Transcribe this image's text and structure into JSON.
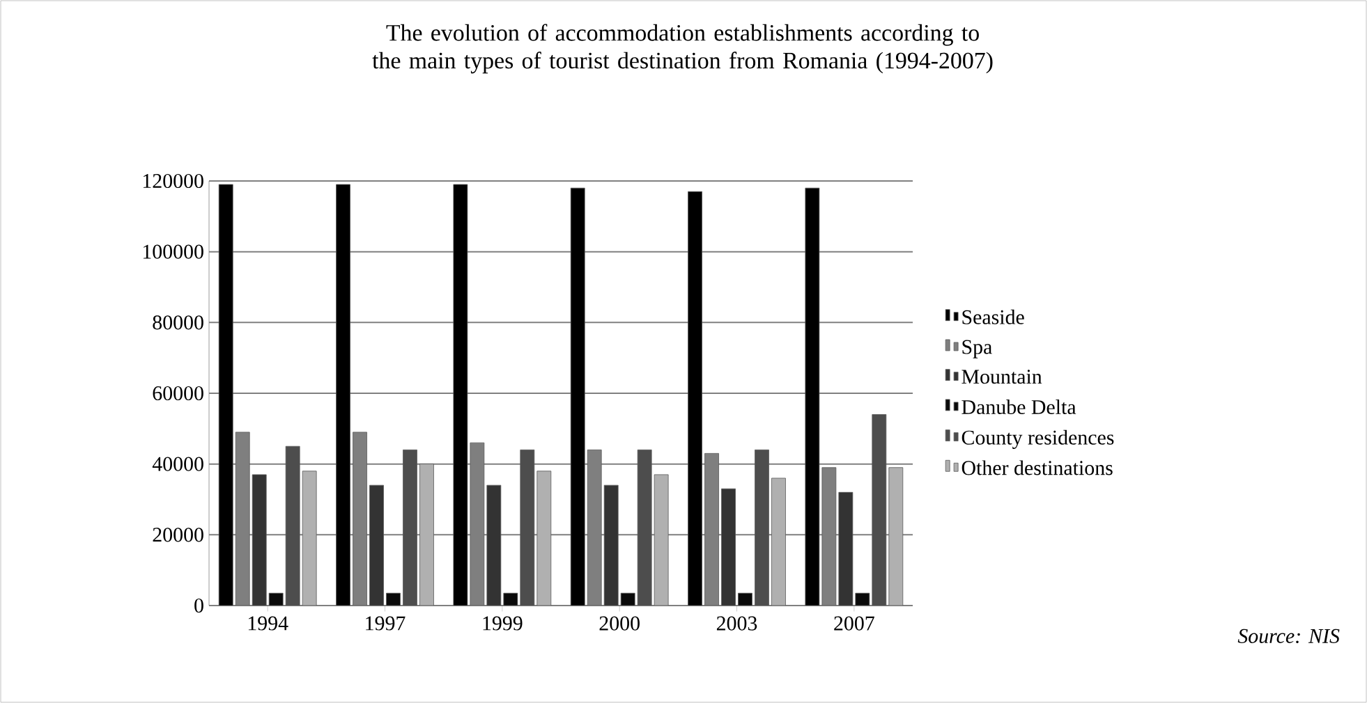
{
  "chart_data": {
    "type": "bar",
    "title": "The evolution of accommodation establishments according to the main types of tourist destination from Romania (1994-2007)",
    "categories": [
      "1994",
      "1997",
      "1999",
      "2000",
      "2003",
      "2007"
    ],
    "series": [
      {
        "name": "Seaside",
        "color": "#000000",
        "values": [
          119000,
          119000,
          119000,
          118000,
          117000,
          118000
        ]
      },
      {
        "name": "Spa",
        "color": "#7f7f7f",
        "values": [
          49000,
          49000,
          46000,
          44000,
          43000,
          39000
        ]
      },
      {
        "name": "Mountain",
        "color": "#333333",
        "values": [
          37000,
          34000,
          34000,
          34000,
          33000,
          32000
        ]
      },
      {
        "name": "Danube Delta",
        "color": "#0a0a0a",
        "values": [
          3500,
          3500,
          3500,
          3500,
          3500,
          3500
        ]
      },
      {
        "name": "County residences",
        "color": "#4d4d4d",
        "values": [
          45000,
          44000,
          44000,
          44000,
          44000,
          54000
        ]
      },
      {
        "name": "Other destinations",
        "color": "#b0b0b0",
        "values": [
          38000,
          40000,
          38000,
          37000,
          36000,
          39000
        ]
      }
    ],
    "ylim": [
      0,
      120000
    ],
    "yticks": [
      0,
      20000,
      40000,
      60000,
      80000,
      100000,
      120000
    ],
    "grid": "y",
    "legend": "right",
    "annotations": [
      "*Source: NIS*"
    ]
  }
}
